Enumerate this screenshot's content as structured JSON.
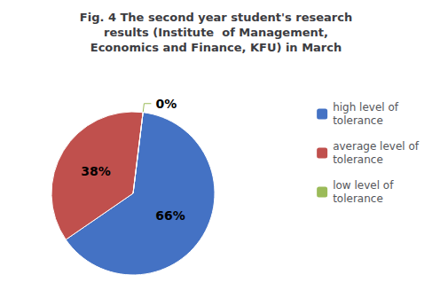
{
  "chart_data": {
    "type": "pie",
    "title": "Fig. 4 The second year student's research\nresults (Institute  of Management,\nEconomics and Finance, KFU) in March",
    "categories": [
      "high level of\ntolerance",
      "average level of\ntolerance",
      "low level of\ntolerance"
    ],
    "values": [
      66,
      38,
      0.001
    ],
    "value_labels": [
      "66%",
      "38%",
      "0%"
    ],
    "colors": [
      "#4472C4",
      "#C0504D",
      "#9BBB59"
    ],
    "data_labels": true,
    "legend": "right"
  }
}
